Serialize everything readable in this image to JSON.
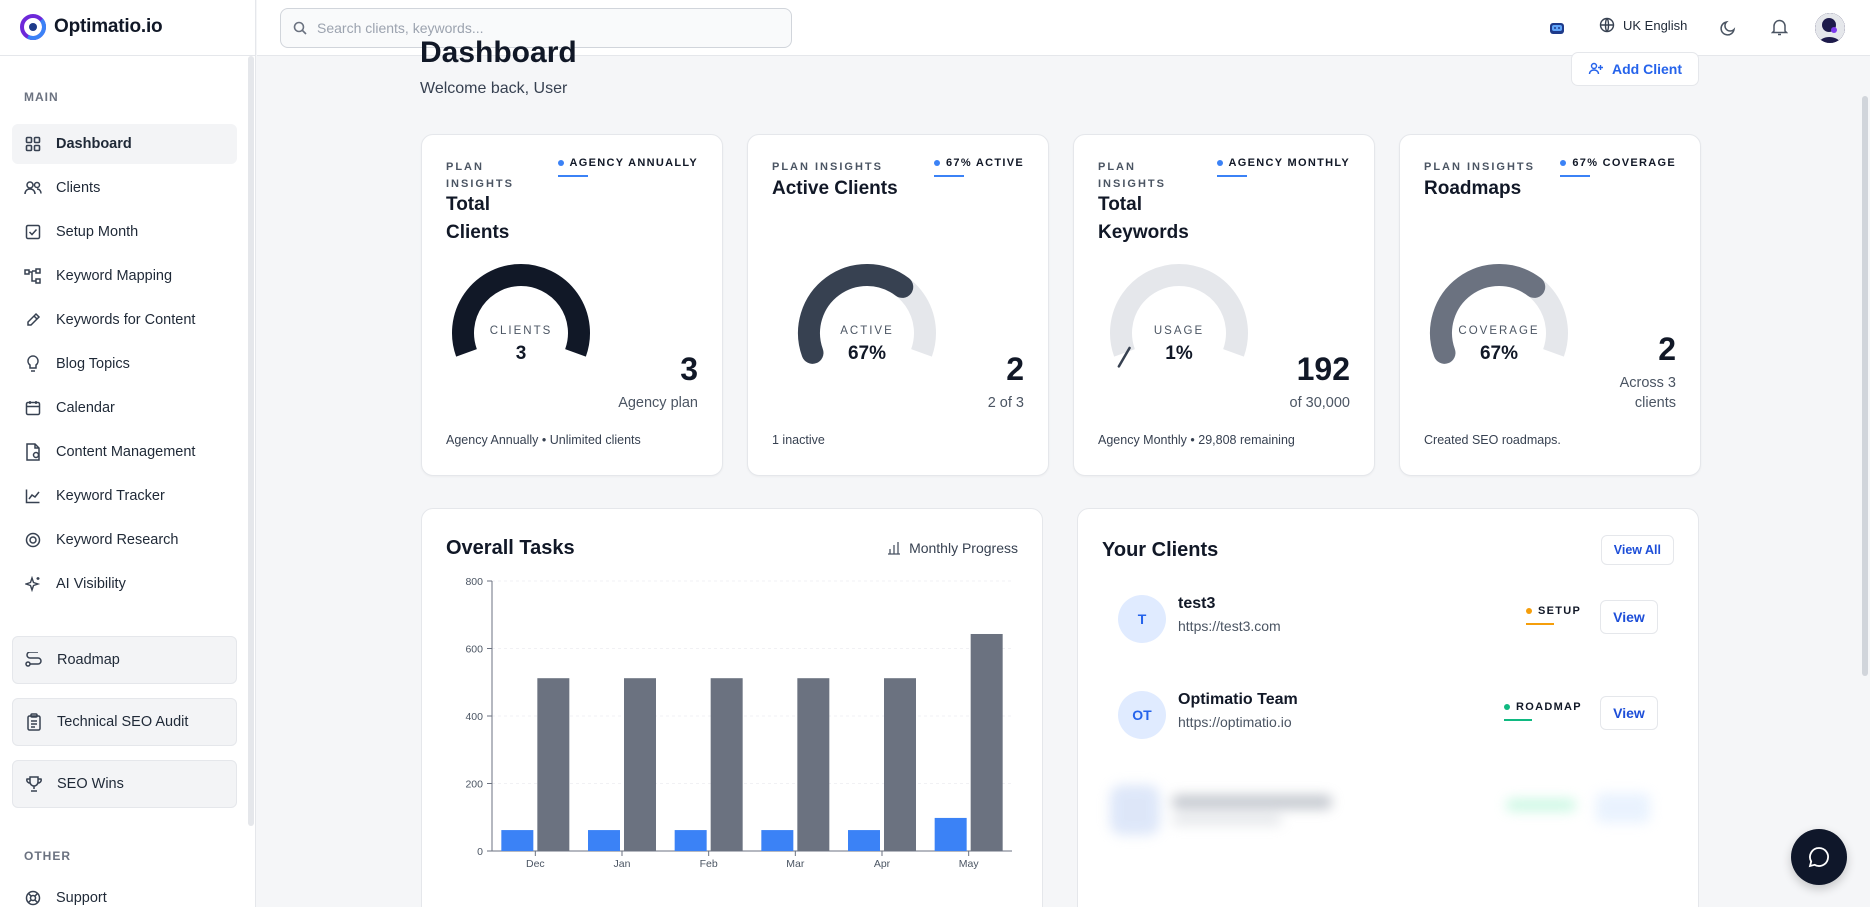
{
  "brand": {
    "name": "Optimatio.io"
  },
  "search": {
    "placeholder": "Search clients, keywords..."
  },
  "topbar": {
    "language": "UK English"
  },
  "sidebar": {
    "main_label": "MAIN",
    "items": [
      {
        "label": "Dashboard",
        "icon": "grid-icon"
      },
      {
        "label": "Clients",
        "icon": "users-icon"
      },
      {
        "label": "Setup Month",
        "icon": "check-square-icon"
      },
      {
        "label": "Keyword Mapping",
        "icon": "flow-icon"
      },
      {
        "label": "Keywords for Content",
        "icon": "pencil-icon"
      },
      {
        "label": "Blog Topics",
        "icon": "lightbulb-icon"
      },
      {
        "label": "Calendar",
        "icon": "calendar-icon"
      },
      {
        "label": "Content Management",
        "icon": "file-icon"
      },
      {
        "label": "Keyword Tracker",
        "icon": "line-chart-icon"
      },
      {
        "label": "Keyword Research",
        "icon": "target-icon"
      },
      {
        "label": "AI Visibility",
        "icon": "sparkle-icon"
      }
    ],
    "boxed_items": [
      {
        "label": "Roadmap",
        "icon": "route-icon"
      },
      {
        "label": "Technical SEO Audit",
        "icon": "clipboard-icon"
      },
      {
        "label": "SEO Wins",
        "icon": "trophy-icon"
      }
    ],
    "other_label": "OTHER",
    "other_items": [
      {
        "label": "Support",
        "icon": "support-icon"
      }
    ]
  },
  "header": {
    "title": "Dashboard",
    "welcome": "Welcome back, User",
    "add_client": "Add Client"
  },
  "cards": [
    {
      "eyebrow": "PLAN INSIGHTS",
      "badge": "AGENCY ANNUALLY",
      "title_line1": "Total",
      "title_line2": "Clients",
      "gauge_label": "CLIENTS",
      "gauge_value": "3",
      "gauge_fraction": 1.0,
      "big": "3",
      "sub": "Agency plan",
      "foot": "Agency Annually • Unlimited clients"
    },
    {
      "eyebrow": "PLAN INSIGHTS",
      "badge": "67% ACTIVE",
      "title_line1": "Active Clients",
      "gauge_label": "ACTIVE",
      "gauge_value": "67%",
      "gauge_fraction": 0.67,
      "big": "2",
      "sub": "2 of 3",
      "foot": "1 inactive"
    },
    {
      "eyebrow": "PLAN INSIGHTS",
      "badge": "AGENCY MONTHLY",
      "title_line1": "Total",
      "title_line2": "Keywords",
      "gauge_label": "USAGE",
      "gauge_value": "1%",
      "gauge_fraction": 0.01,
      "big": "192",
      "sub": "of 30,000",
      "foot": "Agency Monthly • 29,808 remaining"
    },
    {
      "eyebrow": "PLAN INSIGHTS",
      "badge": "67% COVERAGE",
      "title_line1": "Roadmaps",
      "gauge_label": "COVERAGE",
      "gauge_value": "67%",
      "gauge_fraction": 0.67,
      "big": "2",
      "sub_line1": "Across 3",
      "sub_line2": "clients",
      "foot": "Created SEO roadmaps."
    }
  ],
  "tasks": {
    "title": "Overall Tasks",
    "toggle": "Monthly Progress"
  },
  "chart_data": {
    "type": "bar",
    "title": "Overall Tasks",
    "categories": [
      "Dec",
      "Jan",
      "Feb",
      "Mar",
      "Apr",
      "May"
    ],
    "series": [
      {
        "values": [
          62,
          62,
          62,
          62,
          62,
          98
        ],
        "color": "#3b82f6"
      },
      {
        "values": [
          512,
          512,
          512,
          512,
          512,
          643
        ],
        "color": "#6b7280"
      }
    ],
    "ylim": [
      0,
      800
    ],
    "yticks": [
      0,
      200,
      400,
      600,
      800
    ],
    "grid": true
  },
  "clients": {
    "title": "Your Clients",
    "view_all": "View All",
    "rows": [
      {
        "initials": "T",
        "name": "test3",
        "url": "https://test3.com",
        "status": "SETUP",
        "status_color": "#f59e0b",
        "view": "View"
      },
      {
        "initials": "OT",
        "name": "Optimatio Team",
        "url": "https://optimatio.io",
        "status": "ROADMAP",
        "status_color": "#10b981",
        "view": "View"
      }
    ]
  },
  "colors": {
    "accent": "#2563eb",
    "gauge_dark": "#111827",
    "gauge_track": "#e5e7eb"
  }
}
